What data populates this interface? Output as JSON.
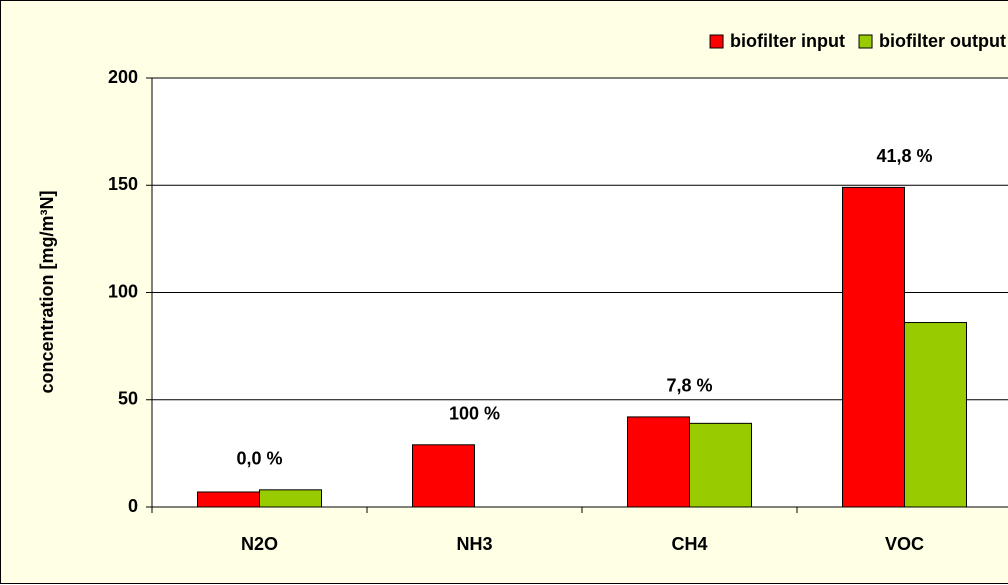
{
  "chart_data": {
    "type": "bar",
    "categories": [
      "N2O",
      "NH3",
      "CH4",
      "VOC"
    ],
    "series": [
      {
        "name": "biofilter input",
        "color": "#ff0000",
        "values": [
          7,
          29,
          42,
          149
        ]
      },
      {
        "name": "biofilter output",
        "color": "#99cc00",
        "values": [
          8,
          0,
          39,
          86
        ]
      }
    ],
    "annotations": [
      "0,0 %",
      "100 %",
      "7,8 %",
      "41,8 %"
    ],
    "ylabel": "concentration [mg/m³N]",
    "ylim": [
      0,
      200
    ],
    "yticks": [
      0,
      50,
      100,
      150,
      200
    ],
    "grid": true,
    "legend": "top-right"
  }
}
